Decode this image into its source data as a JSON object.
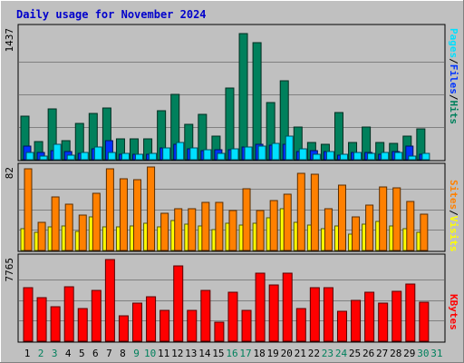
{
  "title": "Daily usage for November 2024",
  "colors": {
    "background": "#c0c0c0",
    "title_text": "#0000cc",
    "hits": "#00805c",
    "files": "#0033ff",
    "pages": "#00e0ff",
    "visits": "#ffff00",
    "sites": "#ff8000",
    "kbytes": "#ff0000",
    "day_label": "#000000",
    "weekend_label": "#00805c"
  },
  "chart_data": [
    {
      "type": "bar",
      "panel": "hits_files_pages",
      "ymax_label": "1437",
      "ymax": 1437,
      "legend": [
        "Pages",
        "/",
        "Files",
        "/",
        "Hits"
      ],
      "categories": [
        "1",
        "2",
        "3",
        "4",
        "5",
        "6",
        "7",
        "8",
        "9",
        "10",
        "11",
        "12",
        "13",
        "14",
        "15",
        "16",
        "17",
        "18",
        "19",
        "20",
        "21",
        "22",
        "23",
        "24",
        "25",
        "26",
        "27",
        "28",
        "29",
        "30",
        "31"
      ],
      "series": [
        {
          "name": "Hits",
          "values": [
            480,
            200,
            560,
            210,
            400,
            510,
            570,
            230,
            230,
            230,
            540,
            720,
            390,
            500,
            260,
            790,
            1390,
            1290,
            630,
            870,
            360,
            190,
            170,
            520,
            190,
            360,
            190,
            180,
            260,
            340,
            0
          ]
        },
        {
          "name": "Files",
          "values": [
            150,
            80,
            100,
            90,
            70,
            120,
            210,
            60,
            60,
            60,
            130,
            170,
            120,
            100,
            110,
            110,
            140,
            170,
            160,
            170,
            90,
            100,
            90,
            50,
            80,
            80,
            60,
            90,
            150,
            60,
            0
          ]
        },
        {
          "name": "Pages",
          "values": [
            80,
            40,
            170,
            50,
            80,
            140,
            80,
            70,
            60,
            70,
            130,
            190,
            130,
            110,
            70,
            120,
            140,
            150,
            180,
            260,
            120,
            60,
            90,
            60,
            80,
            70,
            80,
            80,
            40,
            70,
            0
          ]
        }
      ]
    },
    {
      "type": "bar",
      "panel": "visits_sites",
      "ymax_label": "82",
      "ymax": 82,
      "legend": [
        "Sites",
        "/",
        "Visits"
      ],
      "categories": [
        "1",
        "2",
        "3",
        "4",
        "5",
        "6",
        "7",
        "8",
        "9",
        "10",
        "11",
        "12",
        "13",
        "14",
        "15",
        "16",
        "17",
        "18",
        "19",
        "20",
        "21",
        "22",
        "23",
        "24",
        "25",
        "26",
        "27",
        "28",
        "29",
        "30",
        "31"
      ],
      "series": [
        {
          "name": "Visits",
          "values": [
            22,
            18,
            23,
            24,
            19,
            33,
            23,
            23,
            24,
            27,
            23,
            30,
            26,
            24,
            21,
            27,
            25,
            27,
            32,
            41,
            28,
            25,
            22,
            24,
            16,
            26,
            29,
            24,
            22,
            18,
            0
          ]
        },
        {
          "name": "Sites",
          "values": [
            81,
            28,
            53,
            46,
            35,
            57,
            81,
            71,
            70,
            83,
            37,
            41,
            41,
            48,
            48,
            40,
            61,
            40,
            50,
            56,
            77,
            76,
            41,
            65,
            33,
            45,
            63,
            62,
            49,
            36,
            0
          ]
        }
      ]
    },
    {
      "type": "bar",
      "panel": "kbytes",
      "ymax_label": "7765",
      "ymax": 7765,
      "legend": [
        "KBytes"
      ],
      "categories": [
        "1",
        "2",
        "3",
        "4",
        "5",
        "6",
        "7",
        "8",
        "9",
        "10",
        "11",
        "12",
        "13",
        "14",
        "15",
        "16",
        "17",
        "18",
        "19",
        "20",
        "21",
        "22",
        "23",
        "24",
        "25",
        "26",
        "27",
        "28",
        "29",
        "30",
        "31"
      ],
      "series": [
        {
          "name": "KBytes",
          "values": [
            5000,
            4100,
            3200,
            5100,
            3100,
            4800,
            7700,
            2400,
            3600,
            4200,
            2900,
            7100,
            2900,
            4800,
            1800,
            4600,
            2900,
            6400,
            5300,
            6400,
            3100,
            5000,
            5000,
            2800,
            3800,
            4600,
            3600,
            4700,
            5400,
            3700,
            0
          ]
        }
      ]
    },
    {
      "type": "table",
      "panel": "x_axis_days",
      "labels": [
        "1",
        "2",
        "3",
        "4",
        "5",
        "6",
        "7",
        "8",
        "9",
        "10",
        "11",
        "12",
        "13",
        "14",
        "15",
        "16",
        "17",
        "18",
        "19",
        "20",
        "21",
        "22",
        "23",
        "24",
        "25",
        "26",
        "27",
        "28",
        "29",
        "30",
        "31"
      ],
      "weekend": [
        false,
        true,
        true,
        false,
        false,
        false,
        false,
        false,
        true,
        true,
        false,
        false,
        false,
        false,
        false,
        true,
        true,
        false,
        false,
        false,
        false,
        false,
        true,
        true,
        false,
        false,
        false,
        false,
        false,
        true,
        true
      ]
    }
  ]
}
